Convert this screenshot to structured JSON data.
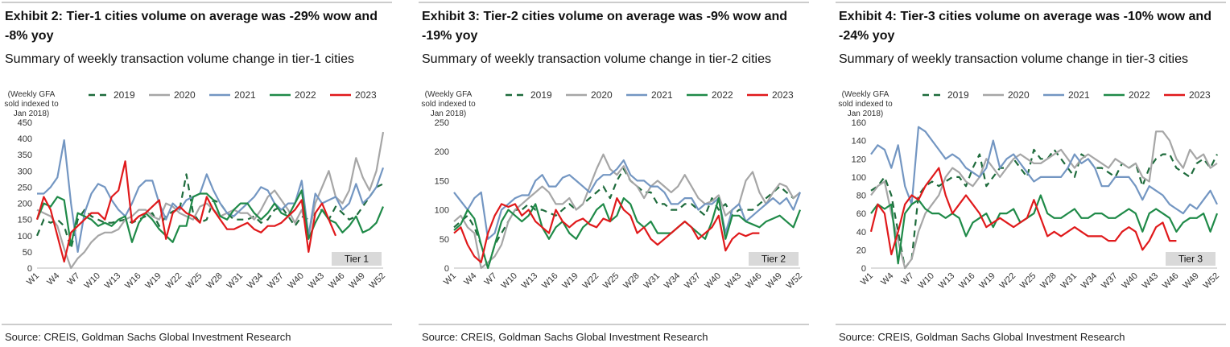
{
  "chart_data": [
    {
      "type": "line",
      "title": "Exhibit 2: Tier-1 cities volume on average was -29% wow and -8% yoy",
      "subtitle": "Summary of weekly transaction volume change in tier-1 cities",
      "y_label": "(Weekly GFA sold indexed to Jan 2018)",
      "annotation": "Tier 1",
      "source": "Source: CREIS, Goldman Sachs Global Investment Research",
      "categories": [
        "W1",
        null,
        null,
        "W4",
        null,
        null,
        "W7",
        null,
        null,
        "W10",
        null,
        null,
        "W13",
        null,
        null,
        "W16",
        null,
        null,
        "W19",
        null,
        null,
        "W22",
        null,
        null,
        "W25",
        null,
        null,
        "W28",
        null,
        null,
        "W31",
        null,
        null,
        "W34",
        null,
        null,
        "W37",
        null,
        null,
        "W40",
        null,
        null,
        "W43",
        null,
        null,
        "W46",
        null,
        null,
        "W49",
        null,
        null,
        "W52"
      ],
      "ylim": [
        0,
        450
      ],
      "yticks": [
        0,
        50,
        100,
        150,
        200,
        250,
        300,
        350,
        400,
        450
      ],
      "grid": false,
      "series": [
        {
          "name": "2019",
          "color": "#1e6b3c",
          "dashed": true,
          "values": [
            100,
            150,
            140,
            150,
            130,
            60,
            150,
            180,
            160,
            150,
            140,
            140,
            145,
            150,
            140,
            150,
            160,
            170,
            130,
            160,
            175,
            180,
            290,
            170,
            140,
            150,
            210,
            200,
            170,
            150,
            150,
            150,
            160,
            140,
            150,
            180,
            190,
            160,
            130,
            160,
            150,
            170,
            180,
            150,
            190,
            170,
            150,
            160,
            190,
            220,
            250,
            260
          ]
        },
        {
          "name": "2020",
          "color": "#a6a6a6",
          "dashed": false,
          "values": [
            180,
            170,
            160,
            130,
            60,
            0,
            30,
            50,
            80,
            100,
            110,
            110,
            120,
            150,
            160,
            180,
            180,
            160,
            150,
            200,
            190,
            170,
            160,
            150,
            190,
            200,
            180,
            160,
            170,
            180,
            170,
            170,
            150,
            180,
            220,
            240,
            210,
            180,
            140,
            180,
            100,
            200,
            250,
            300,
            220,
            200,
            240,
            340,
            280,
            240,
            300,
            420
          ]
        },
        {
          "name": "2021",
          "color": "#7396c2",
          "dashed": false,
          "values": [
            230,
            230,
            250,
            280,
            395,
            200,
            50,
            170,
            230,
            260,
            250,
            210,
            180,
            160,
            200,
            250,
            270,
            270,
            200,
            150,
            200,
            180,
            210,
            220,
            230,
            290,
            240,
            200,
            170,
            160,
            180,
            200,
            220,
            250,
            240,
            200,
            180,
            200,
            200,
            270,
            100,
            230,
            200,
            210,
            220,
            180,
            200,
            260,
            200,
            220,
            250,
            310
          ]
        },
        {
          "name": "2022",
          "color": "#1f8a48",
          "dashed": false,
          "values": [
            150,
            200,
            190,
            220,
            210,
            70,
            170,
            160,
            150,
            130,
            140,
            130,
            150,
            160,
            80,
            140,
            170,
            150,
            120,
            100,
            80,
            130,
            130,
            220,
            230,
            230,
            210,
            160,
            150,
            180,
            200,
            200,
            170,
            150,
            170,
            200,
            170,
            160,
            200,
            240,
            90,
            140,
            180,
            150,
            140,
            110,
            130,
            160,
            110,
            120,
            140,
            190
          ]
        },
        {
          "name": "2023",
          "color": "#e0191b",
          "dashed": false,
          "values": [
            150,
            220,
            180,
            100,
            20,
            110,
            130,
            150,
            170,
            170,
            150,
            220,
            240,
            330,
            140,
            160,
            170,
            190,
            210,
            90,
            170,
            190,
            170,
            160,
            140,
            220,
            180,
            150,
            120,
            120,
            130,
            140,
            120,
            110,
            130,
            130,
            140,
            160,
            180,
            210,
            50,
            170,
            200,
            150,
            100,
            null,
            null,
            null,
            null,
            null,
            null,
            null
          ]
        }
      ]
    },
    {
      "type": "line",
      "title": "Exhibit 3: Tier-2 cities volume on average was -9% wow and -19% yoy",
      "subtitle": "Summary of weekly transaction volume change in tier-2 cities",
      "y_label": "(Weekly GFA sold indexed to Jan 2018)",
      "annotation": "Tier 2",
      "source": "Source: CREIS, Goldman Sachs Global Investment Research",
      "categories": [
        "W1",
        null,
        null,
        "W4",
        null,
        null,
        "W7",
        null,
        null,
        "W10",
        null,
        null,
        "W13",
        null,
        null,
        "W16",
        null,
        null,
        "W19",
        null,
        null,
        "W22",
        null,
        null,
        "W25",
        null,
        null,
        "W28",
        null,
        null,
        "W31",
        null,
        null,
        "W34",
        null,
        null,
        "W37",
        null,
        null,
        "W40",
        null,
        null,
        "W43",
        null,
        null,
        "W46",
        null,
        null,
        "W49",
        null,
        null,
        "W52"
      ],
      "ylim": [
        0,
        250
      ],
      "yticks": [
        0,
        50,
        100,
        150,
        200,
        250
      ],
      "grid": false,
      "series": [
        {
          "name": "2019",
          "color": "#1e6b3c",
          "dashed": true,
          "values": [
            70,
            80,
            90,
            70,
            40,
            0,
            40,
            60,
            80,
            100,
            100,
            110,
            100,
            100,
            95,
            90,
            100,
            110,
            100,
            110,
            120,
            130,
            140,
            120,
            150,
            170,
            150,
            140,
            130,
            130,
            110,
            110,
            100,
            100,
            110,
            110,
            100,
            90,
            120,
            100,
            110,
            90,
            100,
            100,
            100,
            110,
            120,
            130,
            140,
            130,
            120,
            130
          ]
        },
        {
          "name": "2020",
          "color": "#a6a6a6",
          "dashed": false,
          "values": [
            80,
            90,
            70,
            60,
            0,
            10,
            20,
            40,
            80,
            100,
            110,
            120,
            130,
            140,
            130,
            110,
            110,
            120,
            100,
            110,
            140,
            170,
            195,
            170,
            160,
            175,
            150,
            140,
            120,
            140,
            150,
            140,
            130,
            140,
            160,
            140,
            120,
            110,
            115,
            125,
            90,
            100,
            110,
            150,
            165,
            130,
            110,
            130,
            145,
            140,
            120,
            130
          ]
        },
        {
          "name": "2021",
          "color": "#7396c2",
          "dashed": false,
          "values": [
            130,
            115,
            100,
            120,
            130,
            50,
            60,
            100,
            110,
            120,
            125,
            125,
            150,
            160,
            140,
            140,
            155,
            160,
            150,
            140,
            130,
            150,
            160,
            160,
            170,
            185,
            160,
            150,
            150,
            140,
            140,
            130,
            110,
            110,
            120,
            120,
            100,
            110,
            110,
            120,
            60,
            100,
            110,
            80,
            90,
            100,
            110,
            120,
            110,
            120,
            100,
            130
          ]
        },
        {
          "name": "2022",
          "color": "#1f8a48",
          "dashed": false,
          "values": [
            65,
            75,
            100,
            85,
            40,
            0,
            40,
            80,
            100,
            90,
            80,
            90,
            110,
            70,
            50,
            70,
            80,
            60,
            50,
            70,
            80,
            100,
            110,
            80,
            90,
            120,
            110,
            80,
            70,
            80,
            60,
            60,
            60,
            70,
            80,
            70,
            60,
            50,
            80,
            120,
            50,
            90,
            90,
            80,
            75,
            70,
            80,
            85,
            90,
            80,
            70,
            100
          ]
        },
        {
          "name": "2023",
          "color": "#e0191b",
          "dashed": false,
          "values": [
            60,
            70,
            40,
            20,
            10,
            60,
            90,
            110,
            105,
            110,
            90,
            100,
            80,
            70,
            60,
            100,
            80,
            70,
            80,
            85,
            75,
            70,
            85,
            80,
            120,
            100,
            90,
            60,
            70,
            50,
            40,
            50,
            60,
            70,
            80,
            70,
            50,
            60,
            70,
            90,
            30,
            50,
            60,
            55,
            60,
            60,
            null,
            null,
            null,
            null,
            null,
            null
          ]
        }
      ]
    },
    {
      "type": "line",
      "title": "Exhibit 4: Tier-3 cities volume on average was -10% wow and -24% yoy",
      "subtitle": "Summary of weekly transaction volume change in tier-3 cities",
      "y_label": "(Weekly GFA sold indexed to Jan 2018)",
      "annotation": "Tier 3",
      "source": "Source: CREIS, Goldman Sachs Global Investment Research",
      "categories": [
        "W1",
        null,
        null,
        "W4",
        null,
        null,
        "W7",
        null,
        null,
        "W10",
        null,
        null,
        "W13",
        null,
        null,
        "W16",
        null,
        null,
        "W19",
        null,
        null,
        "W22",
        null,
        null,
        "W25",
        null,
        null,
        "W28",
        null,
        null,
        "W31",
        null,
        null,
        "W34",
        null,
        null,
        "W37",
        null,
        null,
        "W40",
        null,
        null,
        "W43",
        null,
        null,
        "W46",
        null,
        null,
        "W49",
        null,
        null,
        "W52"
      ],
      "ylim": [
        0,
        160
      ],
      "yticks": [
        0,
        20,
        40,
        60,
        80,
        100,
        120,
        140,
        160
      ],
      "grid": false,
      "series": [
        {
          "name": "2019",
          "color": "#1e6b3c",
          "dashed": true,
          "values": [
            85,
            90,
            100,
            80,
            40,
            0,
            10,
            80,
            90,
            95,
            90,
            95,
            100,
            100,
            90,
            110,
            125,
            90,
            100,
            110,
            110,
            120,
            110,
            100,
            130,
            120,
            120,
            130,
            120,
            110,
            100,
            125,
            120,
            110,
            110,
            105,
            100,
            115,
            110,
            115,
            90,
            110,
            120,
            125,
            125,
            110,
            105,
            100,
            115,
            120,
            110,
            125
          ]
        },
        {
          "name": "2020",
          "color": "#a6a6a6",
          "dashed": false,
          "values": [
            80,
            90,
            95,
            60,
            30,
            0,
            10,
            40,
            60,
            70,
            80,
            100,
            110,
            105,
            95,
            90,
            100,
            120,
            110,
            100,
            110,
            120,
            125,
            120,
            115,
            115,
            120,
            125,
            130,
            120,
            110,
            120,
            125,
            120,
            115,
            110,
            120,
            115,
            110,
            115,
            100,
            95,
            150,
            150,
            140,
            120,
            110,
            130,
            120,
            125,
            110,
            115
          ]
        },
        {
          "name": "2021",
          "color": "#7396c2",
          "dashed": false,
          "values": [
            125,
            135,
            130,
            110,
            135,
            90,
            70,
            155,
            150,
            140,
            130,
            120,
            125,
            120,
            110,
            105,
            100,
            110,
            140,
            110,
            120,
            125,
            115,
            105,
            95,
            100,
            100,
            100,
            100,
            110,
            125,
            115,
            120,
            110,
            90,
            90,
            100,
            100,
            100,
            90,
            75,
            90,
            85,
            80,
            70,
            65,
            60,
            70,
            65,
            75,
            85,
            70
          ]
        },
        {
          "name": "2022",
          "color": "#1f8a48",
          "dashed": false,
          "values": [
            60,
            70,
            65,
            70,
            5,
            60,
            70,
            75,
            65,
            60,
            60,
            55,
            60,
            55,
            35,
            50,
            55,
            60,
            45,
            60,
            60,
            65,
            50,
            55,
            60,
            80,
            60,
            55,
            55,
            60,
            65,
            55,
            55,
            60,
            60,
            55,
            55,
            60,
            65,
            60,
            40,
            60,
            65,
            60,
            55,
            40,
            50,
            55,
            55,
            60,
            40,
            60
          ]
        },
        {
          "name": "2023",
          "color": "#e0191b",
          "dashed": false,
          "values": [
            40,
            70,
            60,
            15,
            40,
            70,
            80,
            75,
            90,
            100,
            110,
            80,
            60,
            70,
            80,
            70,
            60,
            45,
            50,
            55,
            50,
            45,
            50,
            55,
            75,
            55,
            35,
            40,
            35,
            40,
            45,
            40,
            35,
            35,
            35,
            30,
            30,
            40,
            45,
            40,
            20,
            30,
            45,
            50,
            30,
            30,
            null,
            null,
            null,
            null,
            null,
            null
          ]
        }
      ]
    }
  ]
}
